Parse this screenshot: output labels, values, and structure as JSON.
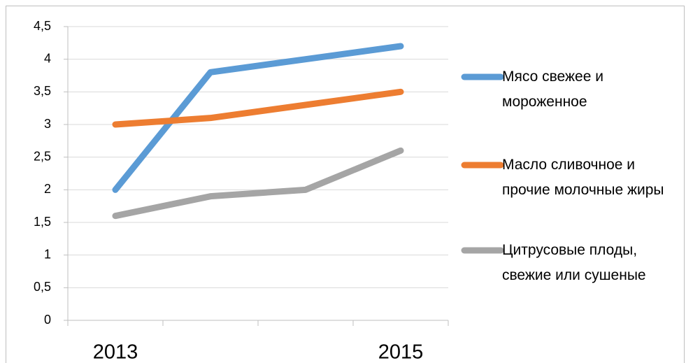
{
  "chart_data": {
    "type": "line",
    "categories": [
      "2013",
      null,
      null,
      "2015"
    ],
    "series": [
      {
        "name": "Мясо свежее и мороженное",
        "color": "#5b9bd5",
        "values": [
          2.0,
          3.8,
          4.0,
          4.2
        ]
      },
      {
        "name": "Масло сливочное и прочие молочные жиры",
        "color": "#ed7d31",
        "values": [
          3.0,
          3.1,
          3.3,
          3.5
        ]
      },
      {
        "name": "Цитрусовые плоды, свежие или сушеные",
        "color": "#a5a5a5",
        "values": [
          1.6,
          1.9,
          2.0,
          2.6
        ]
      }
    ],
    "ylim": [
      0,
      4.5
    ],
    "yticks": [
      0,
      {
        "value": 0.5,
        "label": "0,5"
      },
      1,
      {
        "value": 1.5,
        "label": "1,5"
      },
      2,
      {
        "value": 2.5,
        "label": "2,5"
      },
      3,
      {
        "value": 3.5,
        "label": "3,5"
      },
      4,
      {
        "value": 4.5,
        "label": "4,5"
      }
    ],
    "grid": true,
    "legend": "right"
  }
}
